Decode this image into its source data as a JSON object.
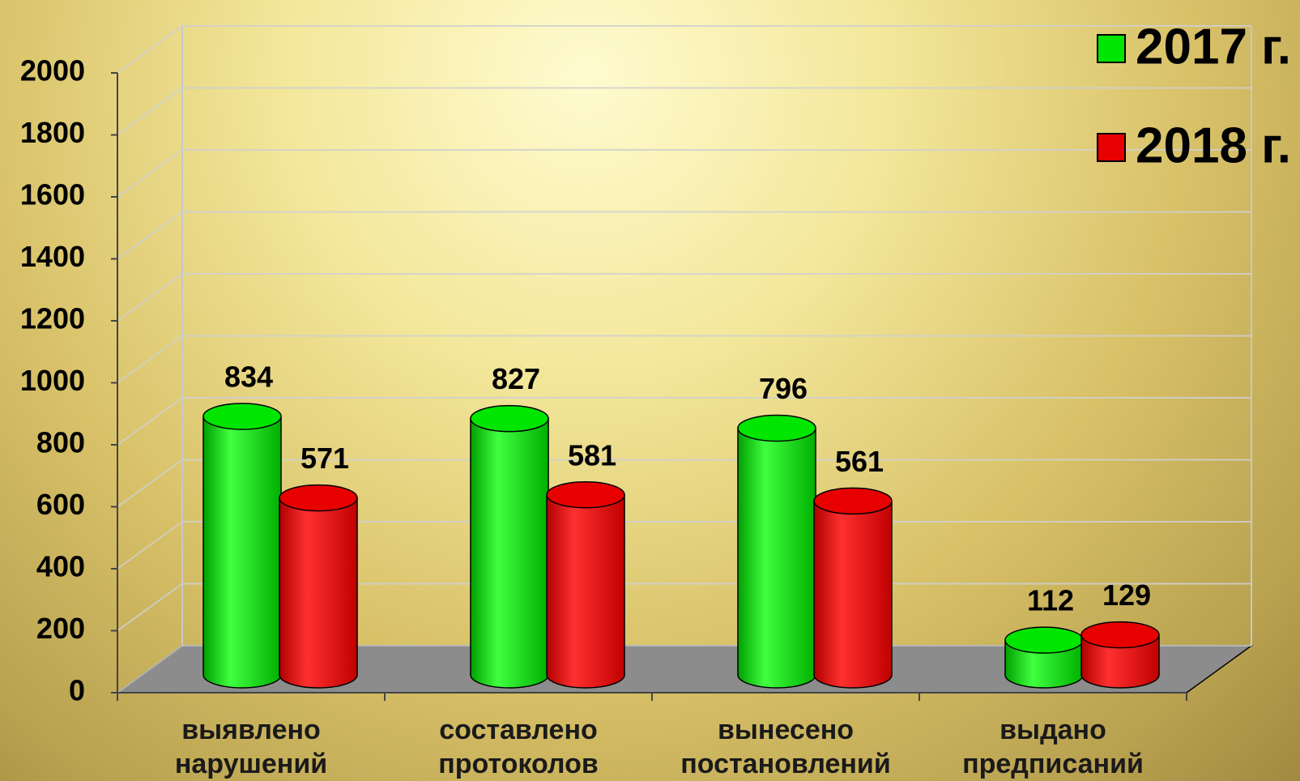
{
  "chart_data": {
    "type": "bar3d",
    "categories": [
      [
        "выявлено",
        "нарушений"
      ],
      [
        "составлено",
        "протоколов"
      ],
      [
        "вынесено",
        "постановлений"
      ],
      [
        "выдано",
        "предписаний"
      ]
    ],
    "series": [
      {
        "name": "2017 г.",
        "color": "#00e600",
        "values": [
          834,
          827,
          796,
          112
        ]
      },
      {
        "name": "2018 г.",
        "color": "#e80000",
        "values": [
          571,
          581,
          561,
          129
        ]
      }
    ],
    "ylim": [
      0,
      2000
    ],
    "yticks": [
      0,
      200,
      400,
      600,
      800,
      1000,
      1200,
      1400,
      1600,
      1800,
      2000
    ],
    "grid": true,
    "legend": "top-right"
  }
}
